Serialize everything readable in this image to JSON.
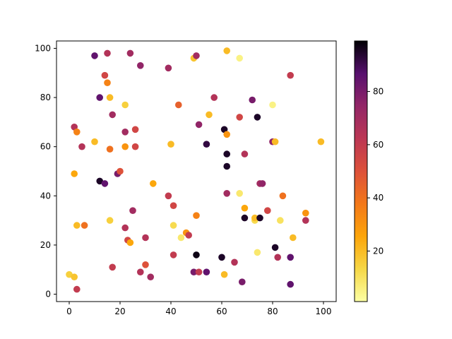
{
  "chart_data": {
    "type": "scatter",
    "title": "",
    "xlabel": "",
    "ylabel": "",
    "xlim": [
      -5,
      105
    ],
    "ylim": [
      -3,
      103
    ],
    "xticks": [
      0,
      20,
      40,
      60,
      80,
      100
    ],
    "yticks": [
      0,
      20,
      40,
      60,
      80,
      100
    ],
    "grid": false,
    "colormap": "inferno_r",
    "colorbar": {
      "range": [
        1,
        99
      ],
      "ticks": [
        20,
        40,
        60,
        80
      ]
    },
    "points": [
      {
        "x": 10,
        "y": 97,
        "c": 85
      },
      {
        "x": 15,
        "y": 98,
        "c": 65
      },
      {
        "x": 24,
        "y": 98,
        "c": 70
      },
      {
        "x": 28,
        "y": 93,
        "c": 75
      },
      {
        "x": 39,
        "y": 92,
        "c": 70
      },
      {
        "x": 49,
        "y": 96,
        "c": 18
      },
      {
        "x": 50,
        "y": 97,
        "c": 70
      },
      {
        "x": 62,
        "y": 99,
        "c": 20
      },
      {
        "x": 67,
        "y": 96,
        "c": 5
      },
      {
        "x": 87,
        "y": 89,
        "c": 60
      },
      {
        "x": 14,
        "y": 89,
        "c": 55
      },
      {
        "x": 15,
        "y": 86,
        "c": 35
      },
      {
        "x": 12,
        "y": 80,
        "c": 85
      },
      {
        "x": 16,
        "y": 80,
        "c": 20
      },
      {
        "x": 22,
        "y": 77,
        "c": 15
      },
      {
        "x": 43,
        "y": 77,
        "c": 45
      },
      {
        "x": 57,
        "y": 80,
        "c": 65
      },
      {
        "x": 72,
        "y": 79,
        "c": 80
      },
      {
        "x": 80,
        "y": 77,
        "c": 5
      },
      {
        "x": 17,
        "y": 73,
        "c": 70
      },
      {
        "x": 55,
        "y": 73,
        "c": 20
      },
      {
        "x": 67,
        "y": 72,
        "c": 55
      },
      {
        "x": 74,
        "y": 72,
        "c": 95
      },
      {
        "x": 2,
        "y": 68,
        "c": 65
      },
      {
        "x": 3,
        "y": 66,
        "c": 35
      },
      {
        "x": 22,
        "y": 66,
        "c": 70
      },
      {
        "x": 26,
        "y": 67,
        "c": 55
      },
      {
        "x": 51,
        "y": 69,
        "c": 75
      },
      {
        "x": 61,
        "y": 67,
        "c": 95
      },
      {
        "x": 62,
        "y": 65,
        "c": 30
      },
      {
        "x": 5,
        "y": 60,
        "c": 65
      },
      {
        "x": 10,
        "y": 62,
        "c": 20
      },
      {
        "x": 16,
        "y": 59,
        "c": 40
      },
      {
        "x": 22,
        "y": 60,
        "c": 30
      },
      {
        "x": 26,
        "y": 60,
        "c": 55
      },
      {
        "x": 40,
        "y": 61,
        "c": 20
      },
      {
        "x": 54,
        "y": 61,
        "c": 92
      },
      {
        "x": 62,
        "y": 57,
        "c": 95
      },
      {
        "x": 69,
        "y": 57,
        "c": 65
      },
      {
        "x": 80,
        "y": 62,
        "c": 75
      },
      {
        "x": 81,
        "y": 62,
        "c": 20
      },
      {
        "x": 99,
        "y": 62,
        "c": 20
      },
      {
        "x": 62,
        "y": 52,
        "c": 95
      },
      {
        "x": 2,
        "y": 49,
        "c": 25
      },
      {
        "x": 12,
        "y": 46,
        "c": 95
      },
      {
        "x": 14,
        "y": 45,
        "c": 85
      },
      {
        "x": 19,
        "y": 49,
        "c": 80
      },
      {
        "x": 20,
        "y": 50,
        "c": 50
      },
      {
        "x": 33,
        "y": 45,
        "c": 25
      },
      {
        "x": 75,
        "y": 45,
        "c": 70
      },
      {
        "x": 76,
        "y": 45,
        "c": 75
      },
      {
        "x": 39,
        "y": 40,
        "c": 60
      },
      {
        "x": 62,
        "y": 41,
        "c": 70
      },
      {
        "x": 67,
        "y": 41,
        "c": 8
      },
      {
        "x": 84,
        "y": 40,
        "c": 40
      },
      {
        "x": 25,
        "y": 34,
        "c": 70
      },
      {
        "x": 41,
        "y": 36,
        "c": 55
      },
      {
        "x": 69,
        "y": 35,
        "c": 25
      },
      {
        "x": 78,
        "y": 34,
        "c": 55
      },
      {
        "x": 93,
        "y": 33,
        "c": 30
      },
      {
        "x": 3,
        "y": 28,
        "c": 20
      },
      {
        "x": 6,
        "y": 28,
        "c": 40
      },
      {
        "x": 16,
        "y": 30,
        "c": 15
      },
      {
        "x": 41,
        "y": 28,
        "c": 12
      },
      {
        "x": 50,
        "y": 32,
        "c": 35
      },
      {
        "x": 69,
        "y": 31,
        "c": 95
      },
      {
        "x": 73,
        "y": 30,
        "c": 12
      },
      {
        "x": 73,
        "y": 31,
        "c": 20
      },
      {
        "x": 75,
        "y": 31,
        "c": 95
      },
      {
        "x": 83,
        "y": 30,
        "c": 10
      },
      {
        "x": 93,
        "y": 30,
        "c": 65
      },
      {
        "x": 22,
        "y": 27,
        "c": 65
      },
      {
        "x": 23,
        "y": 22,
        "c": 55
      },
      {
        "x": 24,
        "y": 21,
        "c": 25
      },
      {
        "x": 30,
        "y": 23,
        "c": 65
      },
      {
        "x": 44,
        "y": 23,
        "c": 8
      },
      {
        "x": 46,
        "y": 25,
        "c": 30
      },
      {
        "x": 47,
        "y": 24,
        "c": 60
      },
      {
        "x": 88,
        "y": 23,
        "c": 20
      },
      {
        "x": 41,
        "y": 16,
        "c": 60
      },
      {
        "x": 50,
        "y": 16,
        "c": 97
      },
      {
        "x": 60,
        "y": 15,
        "c": 95
      },
      {
        "x": 65,
        "y": 13,
        "c": 65
      },
      {
        "x": 74,
        "y": 17,
        "c": 8
      },
      {
        "x": 81,
        "y": 19,
        "c": 95
      },
      {
        "x": 82,
        "y": 15,
        "c": 65
      },
      {
        "x": 87,
        "y": 15,
        "c": 85
      },
      {
        "x": 17,
        "y": 11,
        "c": 60
      },
      {
        "x": 28,
        "y": 9,
        "c": 65
      },
      {
        "x": 30,
        "y": 12,
        "c": 50
      },
      {
        "x": 32,
        "y": 7,
        "c": 70
      },
      {
        "x": 49,
        "y": 9,
        "c": 80
      },
      {
        "x": 51,
        "y": 9,
        "c": 60
      },
      {
        "x": 54,
        "y": 9,
        "c": 85
      },
      {
        "x": 61,
        "y": 8,
        "c": 20
      },
      {
        "x": 0,
        "y": 8,
        "c": 15
      },
      {
        "x": 2,
        "y": 7,
        "c": 18
      },
      {
        "x": 68,
        "y": 5,
        "c": 80
      },
      {
        "x": 87,
        "y": 4,
        "c": 85
      },
      {
        "x": 3,
        "y": 2,
        "c": 60
      }
    ]
  }
}
